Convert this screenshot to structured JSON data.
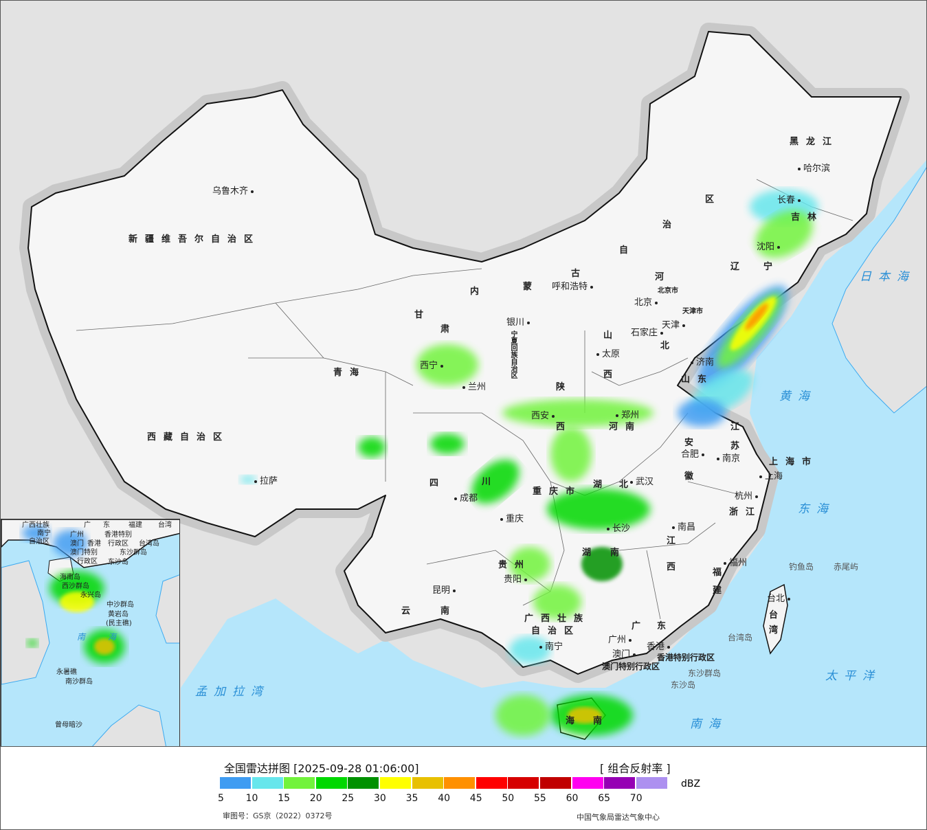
{
  "map": {
    "cities": [
      "乌鲁木齐",
      "拉萨",
      "西宁",
      "兰州",
      "银川",
      "呼和浩特",
      "北京",
      "天津",
      "石家庄",
      "太原",
      "西安",
      "郑州",
      "济南",
      "沈阳",
      "长春",
      "哈尔滨",
      "合肥",
      "南京",
      "上海",
      "杭州",
      "武汉",
      "南昌",
      "长沙",
      "成都",
      "重庆",
      "贵阳",
      "昆明",
      "南宁",
      "广州",
      "香港",
      "澳门",
      "福州",
      "台北"
    ],
    "provinces": [
      "新疆维吾尔自治区",
      "西藏自治区",
      "青海",
      "甘",
      "肃",
      "内",
      "蒙",
      "古",
      "自",
      "治",
      "区",
      "黑龙江",
      "吉林",
      "辽",
      "宁",
      "河",
      "北",
      "山",
      "西",
      "陕",
      "西",
      "河南",
      "山东",
      "江",
      "苏",
      "安",
      "徽",
      "湖",
      "北",
      "四",
      "川",
      "重庆市",
      "贵州",
      "云",
      "南",
      "湖",
      "南",
      "江",
      "西",
      "浙江",
      "福",
      "建",
      "广西壮族",
      "自治区",
      "广",
      "东",
      "上海市",
      "台",
      "湾",
      "海",
      "南",
      "宁夏回族自治区",
      "北京市",
      "天津市"
    ],
    "seas": [
      "日本海",
      "黄海",
      "东海",
      "太平洋",
      "南海",
      "孟加拉湾"
    ],
    "islands": [
      "钓鱼岛",
      "赤尾屿",
      "台湾岛",
      "东沙群岛",
      "东沙岛",
      "香港特别行政区",
      "澳门特别行政区"
    ],
    "inset_labels": [
      "广西壮族",
      "南宁",
      "自治区",
      "广州",
      "广",
      "东",
      "福建",
      "台湾",
      "澳门",
      "香港",
      "香港特别",
      "行政区",
      "台湾岛",
      "澳门特别",
      "行政区",
      "东沙群岛",
      "东沙岛",
      "海南岛",
      "西沙群岛",
      "永兴岛",
      "中沙群岛",
      "黄岩岛",
      "(民主礁)",
      "南",
      "海",
      "永暑礁",
      "南沙群岛",
      "曾母暗沙"
    ]
  },
  "legend": {
    "title": "全国雷达拼图 [2025-09-28 01:06:00]",
    "product": "[ 组合反射率 ]",
    "unit": "dBZ",
    "colors": [
      "#3f9cf2",
      "#66e6ec",
      "#72f33c",
      "#00d800",
      "#009100",
      "#ffff00",
      "#e8c000",
      "#ff9000",
      "#ff0000",
      "#d60000",
      "#c00000",
      "#ff00f0",
      "#9600b4",
      "#ad90f0"
    ],
    "ticks": [
      "5",
      "10",
      "15",
      "20",
      "25",
      "30",
      "35",
      "40",
      "45",
      "50",
      "55",
      "60",
      "65",
      "70"
    ],
    "approval": "审图号：GS京（2022）0372号",
    "organization": "中国气象局雷达气象中心"
  }
}
